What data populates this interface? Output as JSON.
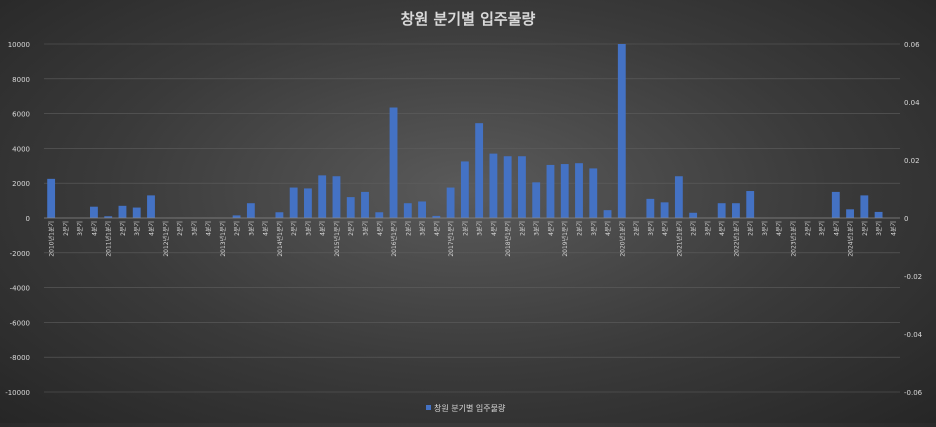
{
  "chart_data": {
    "type": "bar",
    "title": "창원 분기별 입주물량",
    "xlabel": "",
    "ylabel": "",
    "ylim": [
      -10000,
      10000
    ],
    "y2lim": [
      -0.06,
      0.06
    ],
    "yticks": [
      "10000",
      "8000",
      "6000",
      "4000",
      "2000",
      "0",
      "-2000",
      "-4000",
      "-6000",
      "-8000",
      "-10000"
    ],
    "y2ticks": [
      "0.06",
      "0.04",
      "0.02",
      "0",
      "-0.02",
      "-0.04",
      "-0.06"
    ],
    "grid": true,
    "legend": "bottom-center",
    "bar_color": "#4472c4",
    "categories": [
      "2010년1분기",
      "2분기",
      "3분기",
      "4분기",
      "2011년1분기",
      "2분기",
      "3분기",
      "4분기",
      "2012년1분기",
      "2분기",
      "3분기",
      "4분기",
      "2013년1분기",
      "2분기",
      "3분기",
      "4분기",
      "2014년1분기",
      "2분기",
      "3분기",
      "4분기",
      "2015년1분기",
      "2분기",
      "3분기",
      "4분기",
      "2016년1분기",
      "2분기",
      "3분기",
      "4분기",
      "2017년1분기",
      "2분기",
      "3분기",
      "4분기",
      "2018년1분기",
      "2분기",
      "3분기",
      "4분기",
      "2019년1분기",
      "2분기",
      "3분기",
      "4분기",
      "2020년1분기",
      "2분기",
      "3분기",
      "4분기",
      "2021년1분기",
      "2분기",
      "3분기",
      "4분기",
      "2022년1분기",
      "2분기",
      "3분기",
      "4분기",
      "2023년1분기",
      "2분기",
      "3분기",
      "4분기",
      "2024년1분기",
      "2분기",
      "3분기",
      "4분기"
    ],
    "series": [
      {
        "name": "창원 분기별 입주물량",
        "values": [
          2250,
          0,
          0,
          650,
          100,
          700,
          600,
          1300,
          0,
          0,
          0,
          0,
          0,
          150,
          850,
          0,
          330,
          1750,
          1700,
          2450,
          2400,
          1200,
          1500,
          330,
          6350,
          850,
          950,
          120,
          1750,
          3250,
          5450,
          3700,
          3550,
          3550,
          2050,
          3050,
          3100,
          3150,
          2850,
          450,
          10000,
          0,
          1100,
          900,
          2400,
          300,
          0,
          850,
          850,
          1550,
          0,
          0,
          0,
          0,
          0,
          1500,
          500,
          1300,
          350,
          0
        ]
      }
    ]
  }
}
